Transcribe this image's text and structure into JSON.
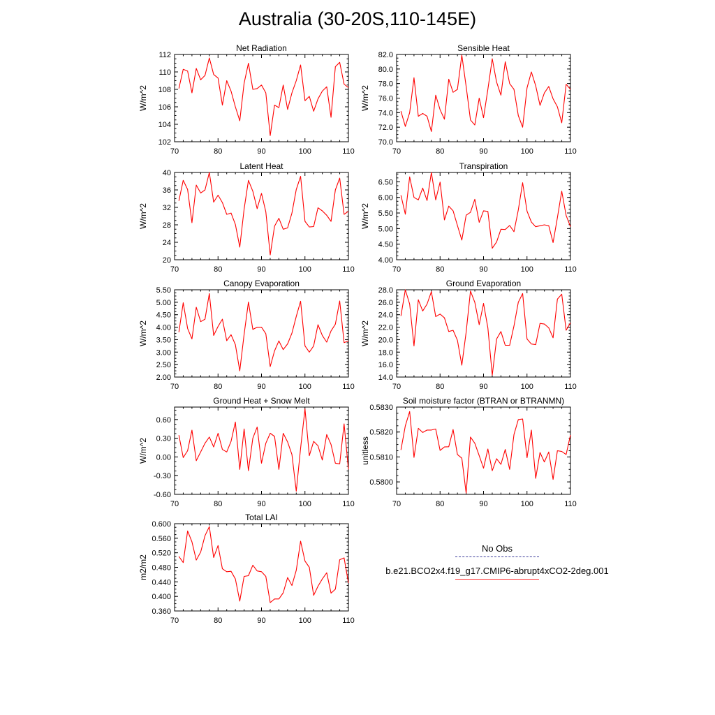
{
  "title": "Australia (30-20S,110-145E)",
  "legend": [
    {
      "label": "No Obs",
      "style": "dashed",
      "color": "#3a3a9a"
    },
    {
      "label": "b.e21.BCO2x4.f19_g17.CMIP6-abrupt4xCO2-2deg.001",
      "style": "solid",
      "color": "#ff2a2a"
    }
  ],
  "chart_data": [
    {
      "type": "line",
      "title": "Net Radiation",
      "ylabel": "W/m^2",
      "xlabel": "",
      "xlim": [
        70,
        110
      ],
      "ylim": [
        102,
        112
      ],
      "xticks": [
        70,
        80,
        90,
        100,
        110
      ],
      "yticks": [
        102,
        104,
        106,
        108,
        110,
        112
      ],
      "ydecimals": 0,
      "x_start": 71,
      "grid": false,
      "series": [
        {
          "color": "#ff0000",
          "values": [
            108.1,
            110.3,
            110.1,
            107.6,
            110.4,
            109.1,
            109.6,
            111.6,
            109.7,
            109.3,
            106.2,
            109.0,
            107.8,
            106.0,
            104.4,
            108.7,
            111.0,
            108.0,
            108.1,
            108.5,
            107.6,
            102.7,
            106.2,
            105.9,
            108.5,
            105.7,
            107.6,
            109.0,
            110.8,
            106.7,
            107.2,
            105.5,
            106.9,
            107.8,
            108.3,
            104.8,
            110.6,
            111.1,
            108.6,
            108.2
          ]
        }
      ]
    },
    {
      "type": "line",
      "title": "Sensible Heat",
      "ylabel": "W/m^2",
      "xlabel": "",
      "xlim": [
        70,
        110
      ],
      "ylim": [
        70.0,
        82.0
      ],
      "xticks": [
        70,
        80,
        90,
        100,
        110
      ],
      "yticks": [
        70.0,
        72.0,
        74.0,
        76.0,
        78.0,
        80.0,
        82.0
      ],
      "ydecimals": 1,
      "x_start": 71,
      "grid": false,
      "series": [
        {
          "color": "#ff0000",
          "values": [
            74.2,
            72.1,
            74.0,
            78.8,
            73.5,
            73.9,
            73.5,
            71.4,
            76.4,
            74.4,
            73.1,
            78.6,
            76.8,
            77.2,
            81.9,
            77.6,
            73.0,
            72.3,
            76.0,
            73.3,
            77.2,
            81.4,
            78.2,
            76.4,
            81.0,
            78.0,
            77.2,
            73.6,
            72.0,
            77.4,
            79.6,
            77.7,
            75.0,
            76.7,
            77.6,
            75.9,
            74.8,
            72.6,
            77.9,
            77.2
          ]
        }
      ]
    },
    {
      "type": "line",
      "title": "Latent Heat",
      "ylabel": "W/m^2",
      "xlabel": "",
      "xlim": [
        70,
        110
      ],
      "ylim": [
        20,
        40
      ],
      "xticks": [
        70,
        80,
        90,
        100,
        110
      ],
      "yticks": [
        20,
        24,
        28,
        32,
        36,
        40
      ],
      "ydecimals": 0,
      "x_start": 71,
      "grid": false,
      "series": [
        {
          "color": "#ff0000",
          "values": [
            33.5,
            38.2,
            36.1,
            28.5,
            37.1,
            35.3,
            36.0,
            40.0,
            33.2,
            34.8,
            33.1,
            30.4,
            30.7,
            28.1,
            22.9,
            31.6,
            38.2,
            35.7,
            31.7,
            35.2,
            31.0,
            21.1,
            27.7,
            29.5,
            27.0,
            27.3,
            30.7,
            36.1,
            39.1,
            28.8,
            27.5,
            27.6,
            31.9,
            31.2,
            30.2,
            28.8,
            36.0,
            38.7,
            30.4,
            31.1
          ]
        }
      ]
    },
    {
      "type": "line",
      "title": "Transpiration",
      "ylabel": "W/m^2",
      "xlabel": "",
      "xlim": [
        70,
        110
      ],
      "ylim": [
        4.0,
        6.8
      ],
      "xticks": [
        70,
        80,
        90,
        100,
        110
      ],
      "yticks": [
        4.0,
        4.5,
        5.0,
        5.5,
        6.0,
        6.5
      ],
      "ydecimals": 2,
      "x_start": 71,
      "grid": false,
      "series": [
        {
          "color": "#ff0000",
          "values": [
            6.07,
            5.46,
            6.66,
            6.0,
            5.92,
            6.3,
            5.9,
            6.8,
            5.92,
            6.49,
            5.28,
            5.72,
            5.57,
            5.1,
            4.63,
            5.43,
            5.52,
            5.94,
            5.2,
            5.57,
            5.55,
            4.37,
            4.57,
            4.98,
            4.97,
            5.1,
            4.9,
            5.6,
            6.47,
            5.56,
            5.21,
            5.06,
            5.09,
            5.12,
            5.09,
            4.55,
            5.35,
            6.2,
            5.42,
            5.06
          ]
        }
      ]
    },
    {
      "type": "line",
      "title": "Canopy Evaporation",
      "ylabel": "W/m^2",
      "xlabel": "",
      "xlim": [
        70,
        110
      ],
      "ylim": [
        2.0,
        5.5
      ],
      "xticks": [
        70,
        80,
        90,
        100,
        110
      ],
      "yticks": [
        2.0,
        2.5,
        3.0,
        3.5,
        4.0,
        4.5,
        5.0,
        5.5
      ],
      "ydecimals": 2,
      "x_start": 71,
      "grid": false,
      "series": [
        {
          "color": "#ff0000",
          "values": [
            3.8,
            4.98,
            3.95,
            3.53,
            4.8,
            4.22,
            4.32,
            5.35,
            3.67,
            4.03,
            4.32,
            3.46,
            3.7,
            3.3,
            2.25,
            3.71,
            5.01,
            3.91,
            4.0,
            4.0,
            3.74,
            2.42,
            3.05,
            3.45,
            3.1,
            3.33,
            3.76,
            4.43,
            5.04,
            3.25,
            3.0,
            3.25,
            4.1,
            3.67,
            3.4,
            3.85,
            4.12,
            5.05,
            3.38,
            3.45
          ]
        }
      ]
    },
    {
      "type": "line",
      "title": "Ground Evaporation",
      "ylabel": "W/m^2",
      "xlabel": "",
      "xlim": [
        70,
        110
      ],
      "ylim": [
        14.0,
        28.0
      ],
      "xticks": [
        70,
        80,
        90,
        100,
        110
      ],
      "yticks": [
        14.0,
        16.0,
        18.0,
        20.0,
        22.0,
        24.0,
        26.0,
        28.0
      ],
      "ydecimals": 1,
      "x_start": 71,
      "grid": false,
      "series": [
        {
          "color": "#ff0000",
          "values": [
            23.8,
            28.0,
            25.7,
            19.0,
            26.4,
            24.6,
            25.7,
            27.7,
            23.7,
            24.1,
            23.5,
            21.3,
            21.5,
            19.9,
            15.9,
            21.2,
            27.8,
            26.0,
            22.4,
            25.8,
            21.9,
            14.3,
            20.1,
            21.3,
            19.1,
            19.1,
            22.2,
            26.0,
            27.4,
            20.1,
            19.3,
            19.2,
            22.6,
            22.5,
            21.9,
            20.3,
            26.5,
            27.3,
            21.5,
            22.7
          ]
        }
      ]
    },
    {
      "type": "line",
      "title": "Ground Heat + Snow Melt",
      "ylabel": "W/m^2",
      "xlabel": "",
      "xlim": [
        70,
        110
      ],
      "ylim": [
        -0.6,
        0.8
      ],
      "xticks": [
        70,
        80,
        90,
        100,
        110
      ],
      "yticks": [
        -0.6,
        -0.3,
        0.0,
        0.3,
        0.6
      ],
      "ydecimals": 2,
      "x_start": 71,
      "grid": false,
      "series": [
        {
          "color": "#ff0000",
          "values": [
            0.35,
            -0.01,
            0.1,
            0.43,
            -0.06,
            0.08,
            0.22,
            0.32,
            0.16,
            0.38,
            0.12,
            0.08,
            0.25,
            0.56,
            -0.2,
            0.45,
            -0.22,
            0.3,
            0.48,
            -0.1,
            0.22,
            0.38,
            0.33,
            -0.2,
            0.38,
            0.24,
            0.04,
            -0.55,
            0.14,
            0.77,
            0.02,
            0.25,
            0.18,
            -0.05,
            0.36,
            0.2,
            -0.1,
            -0.11,
            0.53,
            -0.2
          ]
        }
      ]
    },
    {
      "type": "line",
      "title": "Soil moisture factor (BTRAN or BTRANMN)",
      "ylabel": "unitless",
      "xlabel": "",
      "xlim": [
        70,
        110
      ],
      "ylim": [
        0.5795,
        0.583
      ],
      "xticks": [
        70,
        80,
        90,
        100,
        110
      ],
      "yticks": [
        0.58,
        0.581,
        0.582,
        0.583
      ],
      "ydecimals": 4,
      "x_start": 71,
      "grid": false,
      "series": [
        {
          "color": "#ff0000",
          "values": [
            0.58128,
            0.58225,
            0.58282,
            0.58098,
            0.58215,
            0.58198,
            0.58208,
            0.58208,
            0.58212,
            0.58126,
            0.5814,
            0.58141,
            0.5821,
            0.5811,
            0.58095,
            0.57955,
            0.5818,
            0.58155,
            0.58105,
            0.58055,
            0.58132,
            0.58045,
            0.58093,
            0.5807,
            0.5813,
            0.5805,
            0.5819,
            0.5825,
            0.58252,
            0.58097,
            0.58208,
            0.58014,
            0.58118,
            0.5808,
            0.5812,
            0.5801,
            0.58125,
            0.58122,
            0.5811,
            0.58188
          ]
        }
      ]
    },
    {
      "type": "line",
      "title": "Total LAI",
      "ylabel": "m2/m2",
      "xlabel": "",
      "xlim": [
        70,
        110
      ],
      "ylim": [
        0.36,
        0.6
      ],
      "xticks": [
        70,
        80,
        90,
        100,
        110
      ],
      "yticks": [
        0.36,
        0.4,
        0.44,
        0.48,
        0.52,
        0.56,
        0.6
      ],
      "ydecimals": 3,
      "x_start": 71,
      "grid": false,
      "series": [
        {
          "color": "#ff0000",
          "values": [
            0.51,
            0.493,
            0.58,
            0.55,
            0.5,
            0.522,
            0.567,
            0.592,
            0.507,
            0.54,
            0.476,
            0.468,
            0.469,
            0.448,
            0.387,
            0.455,
            0.457,
            0.486,
            0.47,
            0.468,
            0.455,
            0.383,
            0.393,
            0.393,
            0.41,
            0.452,
            0.43,
            0.472,
            0.552,
            0.497,
            0.48,
            0.403,
            0.428,
            0.448,
            0.465,
            0.409,
            0.42,
            0.501,
            0.506,
            0.437
          ]
        }
      ]
    }
  ]
}
